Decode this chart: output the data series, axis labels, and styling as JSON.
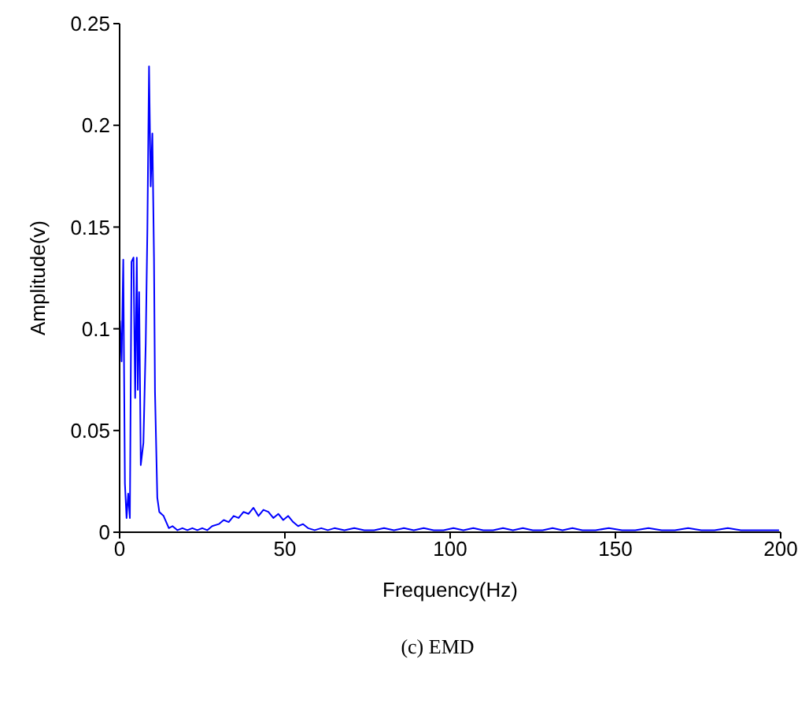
{
  "chart_data": {
    "type": "line",
    "xlabel": "Frequency(Hz)",
    "ylabel": "Amplitude(v)",
    "annotations": [
      "(c) EMD"
    ],
    "xlim": [
      0,
      200
    ],
    "xticks": [
      0,
      50,
      100,
      150,
      200
    ],
    "ylim": [
      0,
      0.25
    ],
    "yticks": [
      0,
      0.05,
      0.1,
      0.15,
      0.2,
      0.25
    ],
    "grid": false,
    "marker": "none",
    "line_style": "solid",
    "series": [
      {
        "color": "#0000ff",
        "x": [
          0.1,
          0.6,
          1.1,
          1.6,
          2.1,
          2.6,
          3.1,
          3.6,
          4.2,
          4.7,
          5.2,
          5.5,
          5.9,
          6.4,
          7.2,
          7.9,
          8.4,
          8.9,
          9.4,
          9.9,
          10.4,
          10.7,
          11.4,
          12,
          13.3,
          14.9,
          16,
          17.5,
          19,
          20.5,
          22,
          23.5,
          25,
          26.5,
          28,
          30,
          31.5,
          33,
          34.5,
          36,
          37.5,
          39,
          40.5,
          42,
          43.5,
          45,
          46.5,
          48,
          49.5,
          51,
          52.5,
          54,
          55.5,
          57,
          59,
          61,
          63,
          65,
          68,
          71,
          74,
          77,
          80,
          83,
          86,
          89,
          92,
          95,
          98,
          101,
          104,
          107,
          110,
          113,
          116,
          119,
          122,
          125,
          128,
          131,
          134,
          137,
          140,
          144,
          148,
          152,
          156,
          160,
          164,
          168,
          172,
          176,
          180,
          184,
          188,
          192,
          196,
          199.5
        ],
        "values": [
          0.104,
          0.084,
          0.134,
          0.024,
          0.007,
          0.019,
          0.007,
          0.133,
          0.135,
          0.066,
          0.135,
          0.07,
          0.118,
          0.033,
          0.044,
          0.093,
          0.149,
          0.229,
          0.17,
          0.196,
          0.135,
          0.069,
          0.017,
          0.01,
          0.008,
          0.002,
          0.003,
          0.001,
          0.002,
          0.001,
          0.002,
          0.001,
          0.002,
          0.001,
          0.003,
          0.004,
          0.006,
          0.005,
          0.008,
          0.007,
          0.01,
          0.009,
          0.012,
          0.008,
          0.011,
          0.01,
          0.007,
          0.009,
          0.006,
          0.008,
          0.005,
          0.003,
          0.004,
          0.002,
          0.001,
          0.002,
          0.001,
          0.002,
          0.001,
          0.002,
          0.001,
          0.001,
          0.002,
          0.001,
          0.002,
          0.001,
          0.002,
          0.001,
          0.001,
          0.002,
          0.001,
          0.002,
          0.001,
          0.001,
          0.002,
          0.001,
          0.002,
          0.001,
          0.001,
          0.002,
          0.001,
          0.002,
          0.001,
          0.001,
          0.002,
          0.001,
          0.001,
          0.002,
          0.001,
          0.001,
          0.002,
          0.001,
          0.001,
          0.002,
          0.001,
          0.001,
          0.001,
          0.001
        ]
      }
    ]
  }
}
